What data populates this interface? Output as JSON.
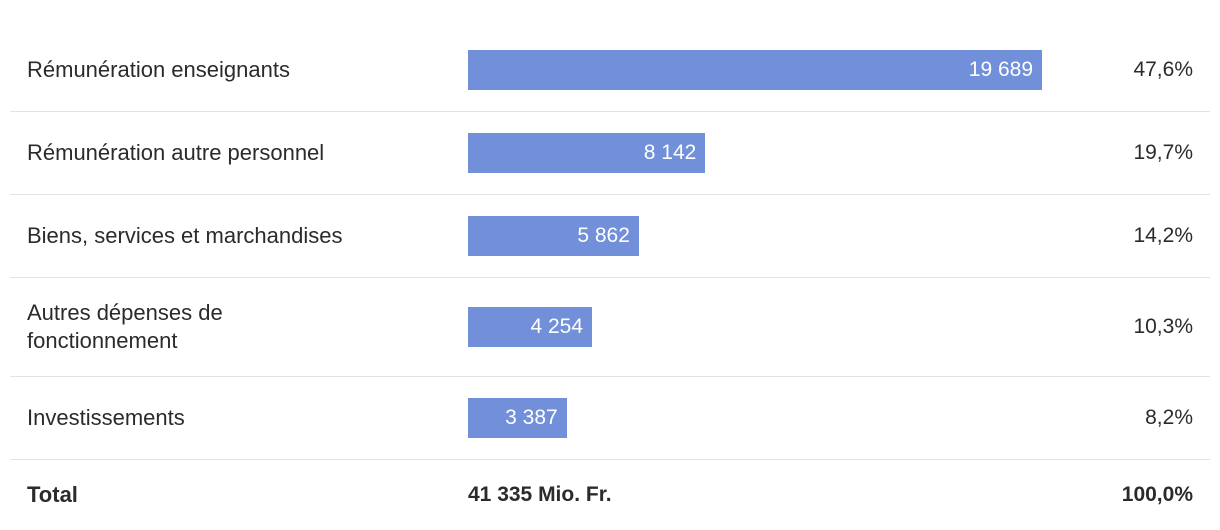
{
  "chart_data": {
    "type": "bar",
    "orientation": "horizontal",
    "categories": [
      "Rémunération enseignants",
      "Rémunération autre personnel",
      "Biens, services et marchandises",
      "Autres dépenses de fonctionnement",
      "Investissements"
    ],
    "values": [
      19689,
      8142,
      5862,
      4254,
      3387
    ],
    "value_labels": [
      "19 689",
      "8 142",
      "5 862",
      "4 254",
      "3 387"
    ],
    "percent_labels": [
      "47,6%",
      "19,7%",
      "14,2%",
      "10,3%",
      "8,2%"
    ],
    "color": "#7190d9",
    "total": {
      "label": "Total",
      "value_label": "41 335 Mio. Fr.",
      "percent_label": "100,0%"
    }
  }
}
